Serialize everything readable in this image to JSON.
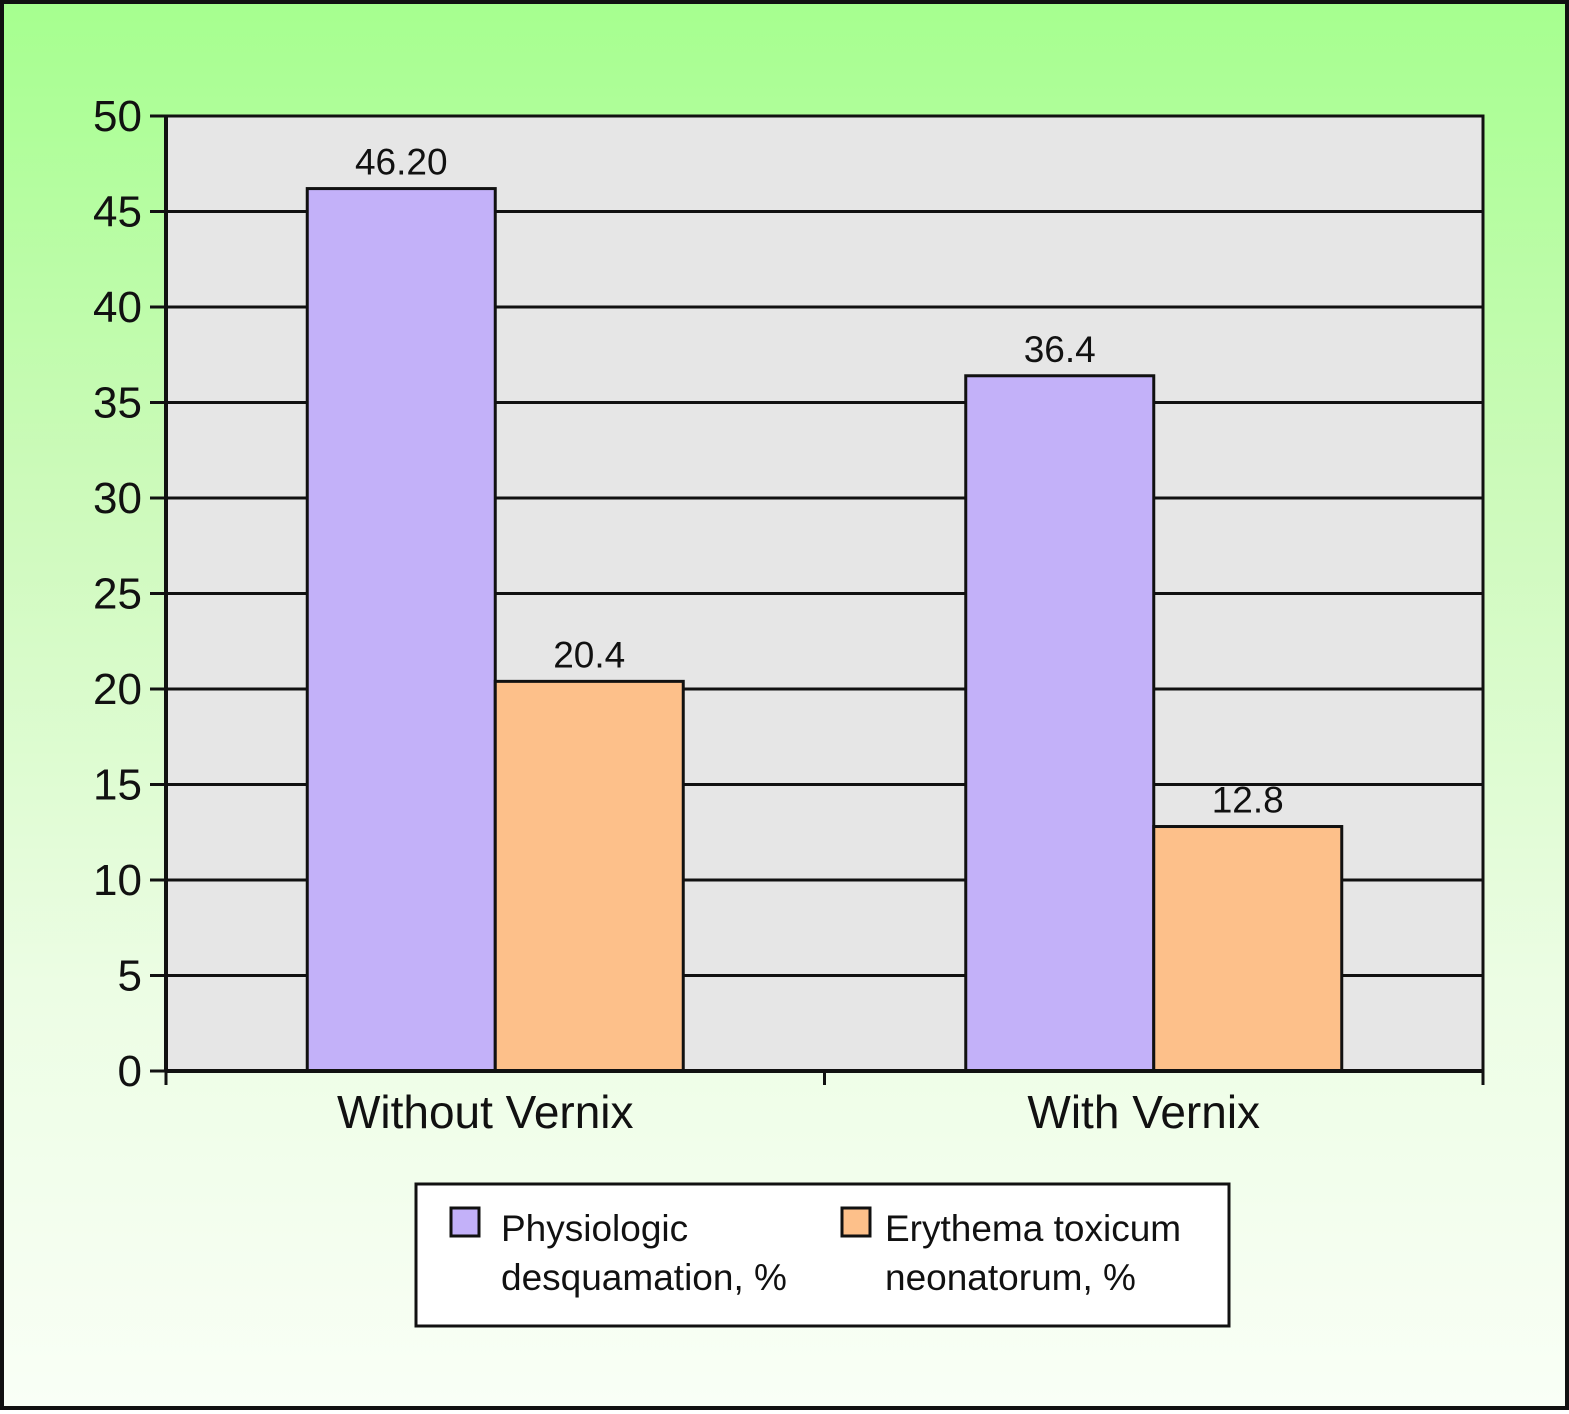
{
  "chart_data": {
    "type": "bar",
    "categories": [
      "Without Vernix",
      "With Vernix"
    ],
    "series": [
      {
        "name": "Physiologic desquamation, %",
        "legend_lines": [
          "Physiologic",
          "desquamation, %"
        ],
        "values": [
          46.2,
          36.4
        ],
        "data_labels": [
          "46.20",
          "36.4"
        ],
        "color": "#c3b1f9"
      },
      {
        "name": "Erythema toxicum neonatorum, %",
        "legend_lines": [
          "Erythema toxicum",
          "neonatorum, %"
        ],
        "values": [
          20.4,
          12.8
        ],
        "data_labels": [
          "20.4",
          "12.8"
        ],
        "color": "#fdc08a"
      }
    ],
    "ylim": [
      0,
      50
    ],
    "yticks": [
      "0",
      "5",
      "10",
      "15",
      "20",
      "25",
      "30",
      "35",
      "40",
      "45",
      "50"
    ],
    "grid": true,
    "legend_position": "bottom",
    "plot_background": "#e6e6e6",
    "frame_background": "#a6ff8f"
  }
}
